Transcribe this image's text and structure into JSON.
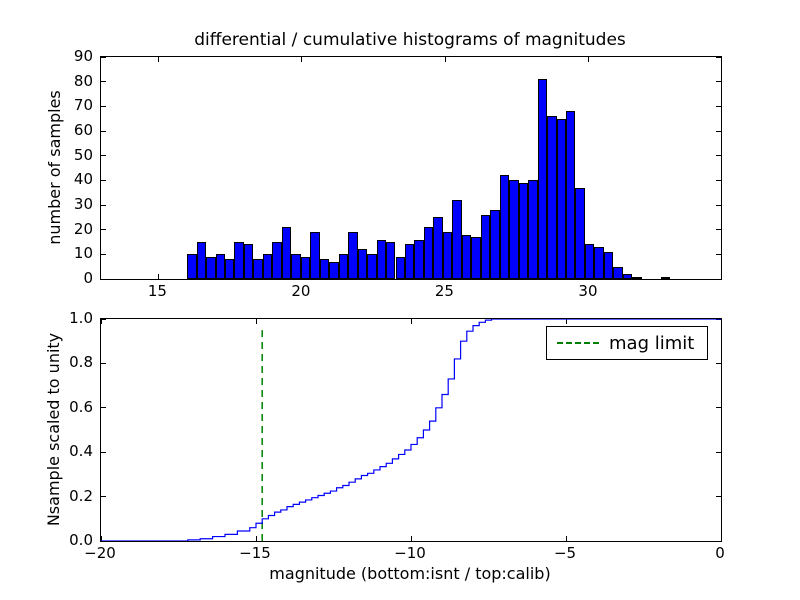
{
  "figure": {
    "background_color": "#ffffff",
    "title": "differential / cumulative histograms of magnitudes"
  },
  "chart_data": [
    {
      "type": "bar",
      "title": "differential / cumulative histograms of magnitudes",
      "ylabel": "number of samples",
      "xlabel": "",
      "xlim": [
        13,
        34.6
      ],
      "ylim": [
        0,
        90
      ],
      "xticks": [
        15,
        20,
        25,
        30
      ],
      "xtick_labels": [
        "15",
        "20",
        "25",
        "30"
      ],
      "yticks": [
        0,
        10,
        20,
        30,
        40,
        50,
        60,
        70,
        80,
        90
      ],
      "ytick_labels": [
        "0",
        "10",
        "20",
        "30",
        "40",
        "50",
        "60",
        "70",
        "80",
        "90"
      ],
      "grid": false,
      "bar_color": "#0000ff",
      "bar_edge_color": "#000000",
      "bin_start": 16.0,
      "bin_width": 0.33,
      "values": [
        10,
        15,
        9,
        10,
        8,
        15,
        14,
        8,
        10,
        15,
        21,
        10,
        9,
        19,
        8,
        7,
        10,
        19,
        12,
        10,
        16,
        15,
        9,
        14,
        16,
        21,
        25,
        19,
        32,
        18,
        17,
        26,
        28,
        42,
        40,
        39,
        40,
        81,
        66,
        65,
        68,
        37,
        14,
        13,
        11,
        5,
        2,
        1,
        0,
        0,
        1
      ]
    },
    {
      "type": "line",
      "title": "",
      "ylabel": "Nsample scaled to unity",
      "xlabel": "magnitude (bottom:isnt / top:calib)",
      "xlim": [
        -20,
        0
      ],
      "ylim": [
        0,
        1
      ],
      "xticks": [
        -20,
        -15,
        -10,
        -5,
        0
      ],
      "xtick_labels": [
        "−20",
        "−15",
        "−10",
        "−5",
        "0"
      ],
      "yticks": [
        0,
        0.2,
        0.4,
        0.6,
        0.8,
        1.0
      ],
      "ytick_labels": [
        "0.0",
        "0.2",
        "0.4",
        "0.6",
        "0.8",
        "1.0"
      ],
      "grid": false,
      "line_color": "#0000ff",
      "line_style": "step",
      "step_points": [
        [
          -17.2,
          0.005
        ],
        [
          -16.8,
          0.01
        ],
        [
          -16.4,
          0.02
        ],
        [
          -16.0,
          0.03
        ],
        [
          -15.6,
          0.045
        ],
        [
          -15.2,
          0.06
        ],
        [
          -15.0,
          0.08
        ],
        [
          -14.8,
          0.1
        ],
        [
          -14.6,
          0.115
        ],
        [
          -14.4,
          0.13
        ],
        [
          -14.2,
          0.14
        ],
        [
          -14.0,
          0.155
        ],
        [
          -13.8,
          0.165
        ],
        [
          -13.6,
          0.175
        ],
        [
          -13.4,
          0.185
        ],
        [
          -13.2,
          0.195
        ],
        [
          -13.0,
          0.205
        ],
        [
          -12.8,
          0.215
        ],
        [
          -12.6,
          0.225
        ],
        [
          -12.4,
          0.24
        ],
        [
          -12.2,
          0.25
        ],
        [
          -12.0,
          0.265
        ],
        [
          -11.8,
          0.28
        ],
        [
          -11.6,
          0.295
        ],
        [
          -11.4,
          0.305
        ],
        [
          -11.2,
          0.32
        ],
        [
          -11.0,
          0.335
        ],
        [
          -10.8,
          0.35
        ],
        [
          -10.6,
          0.37
        ],
        [
          -10.4,
          0.39
        ],
        [
          -10.2,
          0.41
        ],
        [
          -10.0,
          0.435
        ],
        [
          -9.8,
          0.465
        ],
        [
          -9.6,
          0.5
        ],
        [
          -9.4,
          0.54
        ],
        [
          -9.2,
          0.6
        ],
        [
          -9.0,
          0.66
        ],
        [
          -8.8,
          0.73
        ],
        [
          -8.6,
          0.82
        ],
        [
          -8.4,
          0.9
        ],
        [
          -8.2,
          0.945
        ],
        [
          -8.0,
          0.97
        ],
        [
          -7.8,
          0.985
        ],
        [
          -7.6,
          0.995
        ],
        [
          -7.4,
          1.0
        ]
      ],
      "mag_limit_line": {
        "x": -14.8,
        "y0": 0,
        "y1": 0.95,
        "color": "#008000",
        "style": "dashed"
      },
      "legend": {
        "label": "mag limit",
        "position": "upper right"
      }
    }
  ]
}
